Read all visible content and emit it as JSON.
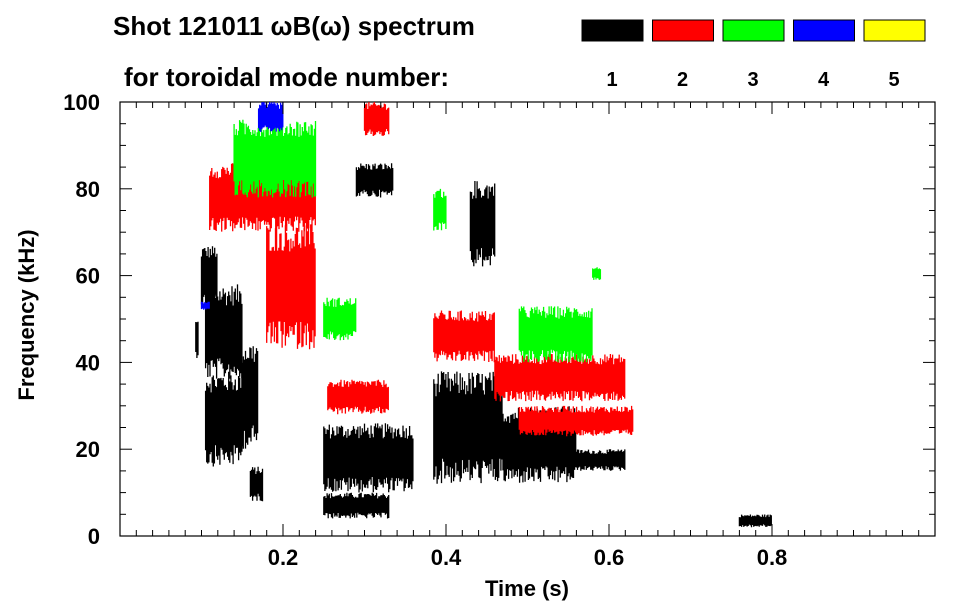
{
  "chart_data": {
    "type": "scatter",
    "title_line1": "Shot 121011 ωB(ω) spectrum",
    "title_line2": "for toroidal mode number:",
    "xlabel": "Time (s)",
    "ylabel": "Frequency (kHz)",
    "xlim": [
      0.0,
      1.0
    ],
    "ylim": [
      0,
      100
    ],
    "x_ticks": [
      0.2,
      0.4,
      0.6,
      0.8
    ],
    "x_tick_labels": [
      "0.2",
      "0.4",
      "0.6",
      "0.8"
    ],
    "y_ticks": [
      0,
      20,
      40,
      60,
      80,
      100
    ],
    "y_tick_labels": [
      "0",
      "20",
      "40",
      "60",
      "80",
      "100"
    ],
    "legend": [
      {
        "label": "1",
        "color": "#000000"
      },
      {
        "label": "2",
        "color": "#ff0000"
      },
      {
        "label": "3",
        "color": "#00ff00"
      },
      {
        "label": "4",
        "color": "#0000ff"
      },
      {
        "label": "5",
        "color": "#ffff00"
      }
    ],
    "series": [
      {
        "name": "n=1",
        "color": "#000000",
        "regions": [
          {
            "t0": 0.093,
            "t1": 0.097,
            "f0": 41,
            "f1": 50
          },
          {
            "t0": 0.1,
            "t1": 0.12,
            "f0": 53,
            "f1": 67
          },
          {
            "t0": 0.105,
            "t1": 0.15,
            "f0": 36,
            "f1": 58
          },
          {
            "t0": 0.105,
            "t1": 0.15,
            "f0": 16,
            "f1": 38
          },
          {
            "t0": 0.15,
            "t1": 0.17,
            "f0": 20,
            "f1": 45
          },
          {
            "t0": 0.16,
            "t1": 0.175,
            "f0": 8,
            "f1": 16
          },
          {
            "t0": 0.25,
            "t1": 0.36,
            "f0": 10,
            "f1": 26
          },
          {
            "t0": 0.25,
            "t1": 0.33,
            "f0": 4,
            "f1": 10
          },
          {
            "t0": 0.29,
            "t1": 0.335,
            "f0": 78,
            "f1": 86
          },
          {
            "t0": 0.385,
            "t1": 0.47,
            "f0": 12,
            "f1": 38
          },
          {
            "t0": 0.47,
            "t1": 0.56,
            "f0": 12,
            "f1": 30
          },
          {
            "t0": 0.56,
            "t1": 0.62,
            "f0": 15,
            "f1": 20
          },
          {
            "t0": 0.43,
            "t1": 0.46,
            "f0": 62,
            "f1": 82
          },
          {
            "t0": 0.76,
            "t1": 0.8,
            "f0": 2,
            "f1": 5
          }
        ]
      },
      {
        "name": "n=2",
        "color": "#ff0000",
        "regions": [
          {
            "t0": 0.11,
            "t1": 0.24,
            "f0": 70,
            "f1": 86
          },
          {
            "t0": 0.18,
            "t1": 0.24,
            "f0": 43,
            "f1": 72
          },
          {
            "t0": 0.255,
            "t1": 0.33,
            "f0": 28,
            "f1": 36
          },
          {
            "t0": 0.3,
            "t1": 0.33,
            "f0": 92,
            "f1": 100
          },
          {
            "t0": 0.385,
            "t1": 0.46,
            "f0": 40,
            "f1": 52
          },
          {
            "t0": 0.46,
            "t1": 0.62,
            "f0": 31,
            "f1": 42
          },
          {
            "t0": 0.49,
            "t1": 0.63,
            "f0": 23,
            "f1": 30
          }
        ]
      },
      {
        "name": "n=3",
        "color": "#00ff00",
        "regions": [
          {
            "t0": 0.14,
            "t1": 0.24,
            "f0": 78,
            "f1": 96
          },
          {
            "t0": 0.25,
            "t1": 0.29,
            "f0": 45,
            "f1": 55
          },
          {
            "t0": 0.385,
            "t1": 0.4,
            "f0": 70,
            "f1": 80
          },
          {
            "t0": 0.49,
            "t1": 0.58,
            "f0": 40,
            "f1": 53
          },
          {
            "t0": 0.58,
            "t1": 0.59,
            "f0": 59,
            "f1": 62
          }
        ]
      },
      {
        "name": "n=4",
        "color": "#0000ff",
        "regions": [
          {
            "t0": 0.17,
            "t1": 0.2,
            "f0": 93,
            "f1": 100
          },
          {
            "t0": 0.1,
            "t1": 0.11,
            "f0": 52,
            "f1": 54
          }
        ]
      },
      {
        "name": "n=5",
        "color": "#ffff00",
        "regions": []
      }
    ]
  }
}
